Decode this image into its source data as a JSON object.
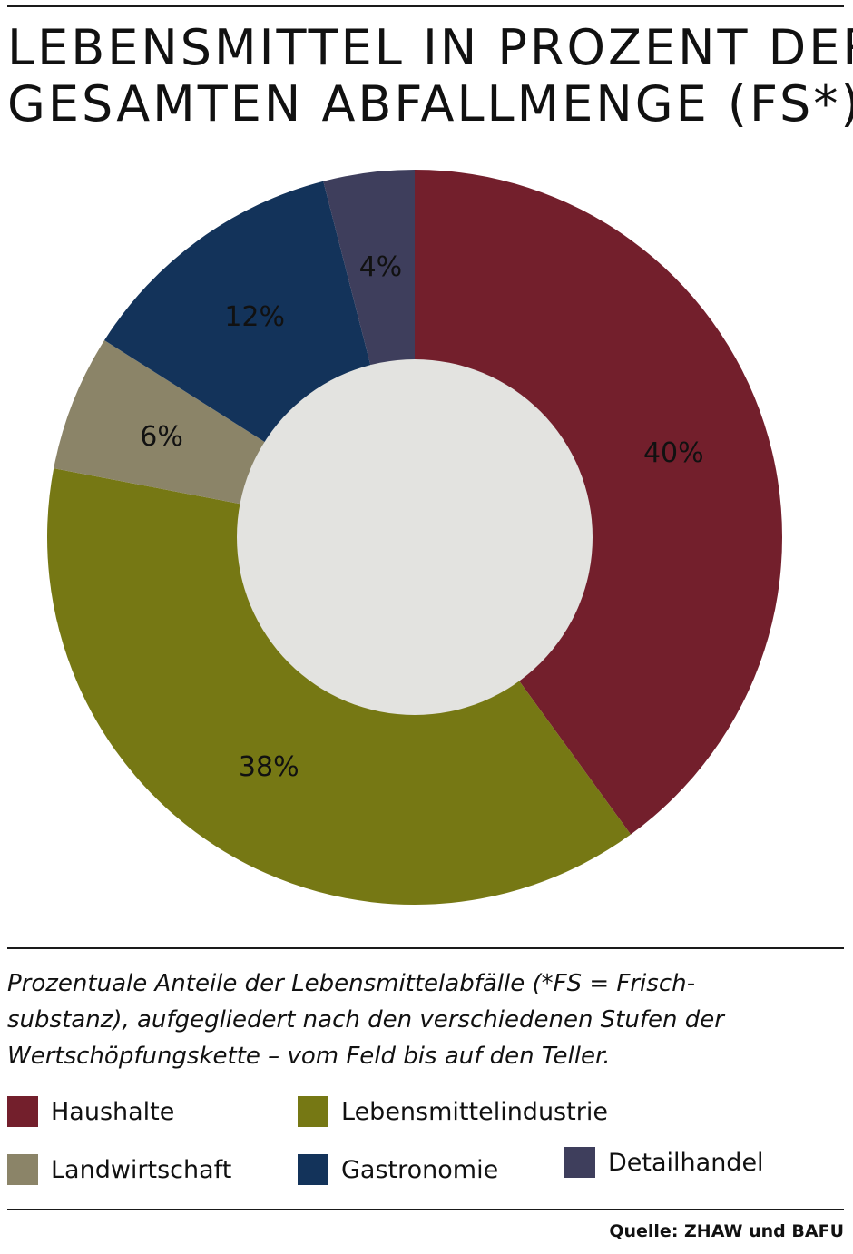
{
  "title_lines": [
    "LEBENSMITTEL IN PROZENT DER",
    "GESAMTEN ABFALLMENGE (FS*)"
  ],
  "caption_lines": [
    "Prozentuale Anteile der Lebensmittelabfälle (*FS = Frisch-",
    "substanz), aufgegliedert nach den verschiedenen Stufen der",
    "Wertschöpfungskette – vom Feld bis auf den Teller."
  ],
  "source": "Quelle: ZHAW und BAFU",
  "chart_data": {
    "type": "pie",
    "donut": true,
    "start_angle": "12 o'clock",
    "direction": "clockwise",
    "center_color": "#e3e3e0",
    "unit": "%",
    "slices": [
      {
        "name": "Haushalte",
        "value": 40,
        "label": "40%",
        "color": "#731f2c"
      },
      {
        "name": "Lebensmittelindustrie",
        "value": 38,
        "label": "38%",
        "color": "#767814"
      },
      {
        "name": "Landwirtschaft",
        "value": 6,
        "label": "6%",
        "color": "#8b8468"
      },
      {
        "name": "Gastronomie",
        "value": 12,
        "label": "12%",
        "color": "#13335a"
      },
      {
        "name": "Detailhandel",
        "value": 4,
        "label": "4%",
        "color": "#3e3e5c"
      }
    ],
    "legend": [
      {
        "name": "Haushalte",
        "color": "#731f2c"
      },
      {
        "name": "Lebensmittelindustrie",
        "color": "#767814"
      },
      {
        "name": "Landwirtschaft",
        "color": "#8b8468"
      },
      {
        "name": "Gastronomie",
        "color": "#13335a"
      },
      {
        "name": "Detailhandel",
        "color": "#3e3e5c"
      }
    ]
  }
}
